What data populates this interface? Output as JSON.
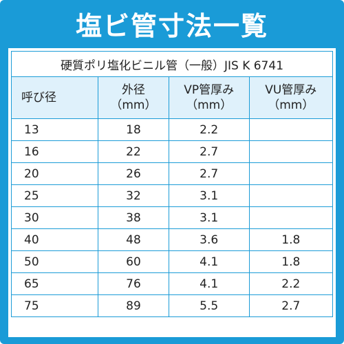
{
  "title": "塩ビ管寸法一覧",
  "caption": "硬質ポリ塩化ビニル管（一般）JIS K 6741",
  "headers": [
    {
      "line1": "呼び径",
      "line2": ""
    },
    {
      "line1": "外径",
      "line2": "（mm）"
    },
    {
      "line1": "VP管厚み",
      "line2": "（mm）"
    },
    {
      "line1": "VU管厚み",
      "line2": "（mm）"
    }
  ],
  "rows": [
    [
      "13",
      "18",
      "2.2",
      ""
    ],
    [
      "16",
      "22",
      "2.7",
      ""
    ],
    [
      "20",
      "26",
      "2.7",
      ""
    ],
    [
      "25",
      "32",
      "3.1",
      ""
    ],
    [
      "30",
      "38",
      "3.1",
      ""
    ],
    [
      "40",
      "48",
      "3.6",
      "1.8"
    ],
    [
      "50",
      "60",
      "4.1",
      "1.8"
    ],
    [
      "65",
      "76",
      "4.1",
      "2.2"
    ],
    [
      "75",
      "89",
      "5.5",
      "2.7"
    ]
  ],
  "colors": {
    "accent": "#1a9bd7",
    "header_bg": "#dff1fb"
  }
}
